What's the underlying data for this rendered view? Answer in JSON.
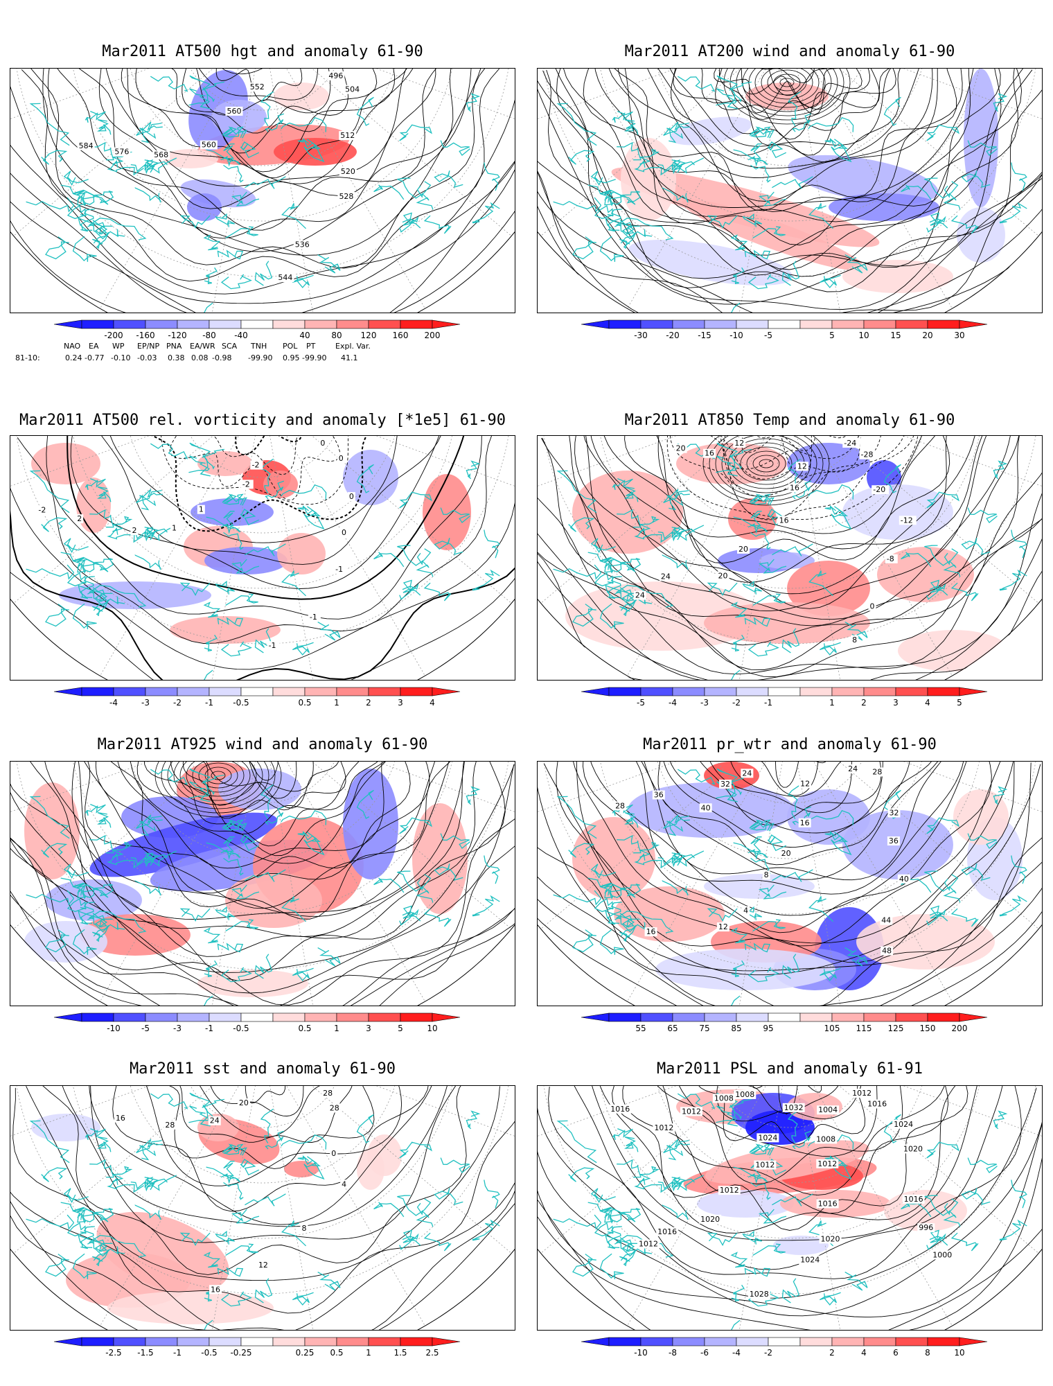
{
  "panels": [
    {
      "title": "Mar2011 AT500 hgt and anomaly 61-90",
      "colorbar": [
        "-200",
        "-160",
        "-120",
        "-80",
        "-40",
        "40",
        "80",
        "120",
        "160",
        "200"
      ],
      "contour_labels": [
        "496",
        "504",
        "512",
        "520",
        "528",
        "536",
        "544",
        "552",
        "560",
        "560",
        "568",
        "576",
        "584"
      ]
    },
    {
      "title": "Mar2011 AT200 wind and anomaly 61-90",
      "colorbar": [
        "-30",
        "-20",
        "-15",
        "-10",
        "-5",
        "5",
        "10",
        "15",
        "20",
        "30"
      ],
      "contour_labels": []
    },
    {
      "title": "Mar2011 AT500 rel. vorticity and anomaly [*1e5] 61-90",
      "colorbar": [
        "-4",
        "-3",
        "-2",
        "-1",
        "-0.5",
        "0.5",
        "1",
        "2",
        "3",
        "4"
      ],
      "contour_labels": [
        "0",
        "0",
        "0",
        "0",
        "-1",
        "-1",
        "-1",
        "-2",
        "-2",
        "1",
        "1",
        "2",
        "2",
        "-2"
      ]
    },
    {
      "title": "Mar2011 AT850 Temp and anomaly 61-90",
      "colorbar": [
        "-5",
        "-4",
        "-3",
        "-2",
        "-1",
        "1",
        "2",
        "3",
        "4",
        "5"
      ],
      "contour_labels": [
        "-24",
        "-28",
        "-20",
        "-12",
        "-8",
        "0",
        "8",
        "12",
        "16",
        "16",
        "20",
        "20",
        "24",
        "24",
        "12",
        "16",
        "20"
      ]
    },
    {
      "title": "Mar2011 AT925 wind and anomaly 61-90",
      "colorbar": [
        "-10",
        "-5",
        "-3",
        "-1",
        "-0.5",
        "0.5",
        "1",
        "3",
        "5",
        "10"
      ],
      "contour_labels": []
    },
    {
      "title": "Mar2011 pr_wtr and anomaly 61-90",
      "colorbar": [
        "55",
        "65",
        "75",
        "85",
        "95",
        "105",
        "115",
        "125",
        "150",
        "200"
      ],
      "contour_labels": [
        "24",
        "28",
        "32",
        "36",
        "40",
        "44",
        "48",
        "12",
        "16",
        "20",
        "8",
        "4",
        "12",
        "16",
        "24",
        "32",
        "40",
        "36",
        "28"
      ]
    },
    {
      "title": "Mar2011 sst and anomaly 61-90",
      "colorbar": [
        "-2.5",
        "-1.5",
        "-1",
        "-0.5",
        "-0.25",
        "0.25",
        "0.5",
        "1",
        "1.5",
        "2.5"
      ],
      "contour_labels": [
        "28",
        "28",
        "0",
        "4",
        "8",
        "12",
        "16",
        "20",
        "24",
        "28",
        "16"
      ]
    },
    {
      "title": "Mar2011 PSL and anomaly 61-91",
      "colorbar": [
        "-10",
        "-8",
        "-6",
        "-4",
        "-2",
        "2",
        "4",
        "6",
        "8",
        "10"
      ],
      "contour_labels": [
        "1012",
        "1016",
        "1024",
        "1020",
        "1016",
        "996",
        "1000",
        "1004",
        "1008",
        "1012",
        "1016",
        "1020",
        "1024",
        "1028",
        "1032",
        "1024",
        "1012",
        "1012",
        "1020",
        "1016",
        "1012",
        "1008",
        "1008",
        "1012",
        "1012",
        "1016"
      ]
    }
  ],
  "teleconnections": {
    "row_label": "81-10:",
    "headers": [
      "NAO",
      "EA",
      "WP",
      "EP/NP",
      "PNA",
      "EA/WR",
      "SCA",
      "TNH",
      "POL",
      "PT",
      "Expl. Var."
    ],
    "values": [
      "0.24",
      "-0.77",
      "-0.10",
      "-0.03",
      "0.38",
      "0.08",
      "-0.98",
      "-99.90",
      "0.95",
      "-99.90",
      "41.1"
    ]
  },
  "colors": {
    "coast": "#20c0c0",
    "blue_scale": [
      "#1e1eff",
      "#5050ff",
      "#8c8cff",
      "#b4b4ff",
      "#dcdcff"
    ],
    "red_scale": [
      "#ffdcdc",
      "#ffb4b4",
      "#ff8c8c",
      "#ff5050",
      "#ff1e1e"
    ]
  }
}
